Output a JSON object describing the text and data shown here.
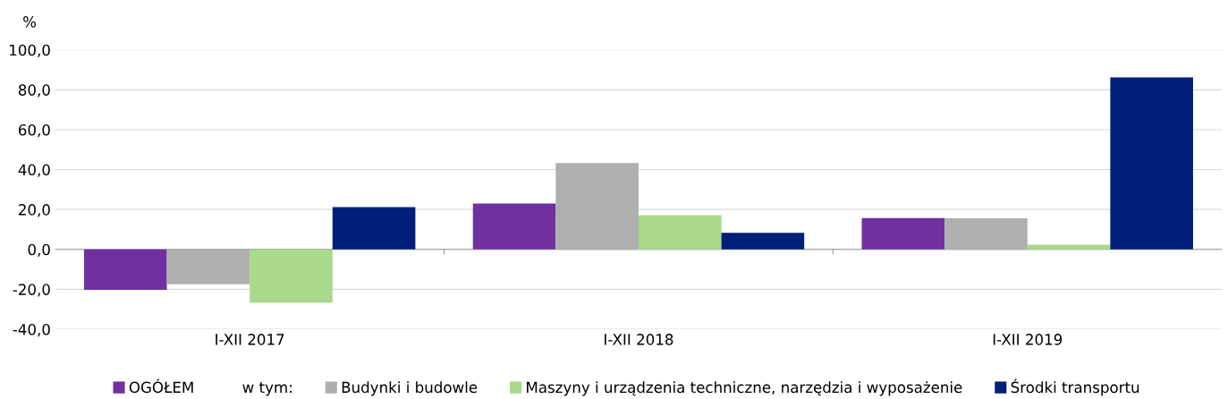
{
  "chart_data": {
    "type": "bar",
    "ylabel": "%",
    "categories": [
      "I-XII 2017",
      "I-XII 2018",
      "I-XII 2019"
    ],
    "series": [
      {
        "name": "OGÓŁEM",
        "color": "#7030a0",
        "values": [
          -20.3,
          23.0,
          15.7
        ]
      },
      {
        "name": "Budynki i budowle",
        "color": "#afafaf",
        "values": [
          -17.5,
          43.3,
          15.6
        ]
      },
      {
        "name": "Maszyny i urządzenia techniczne, narzędzia i wyposażenie",
        "color": "#a9d98b",
        "values": [
          -26.7,
          17.1,
          2.3
        ]
      },
      {
        "name": "Środki transportu",
        "color": "#00207a",
        "values": [
          21.2,
          8.3,
          86.2
        ]
      }
    ],
    "annotations": [
      "w tym:"
    ],
    "ylim": [
      -40,
      100
    ],
    "yticks": [
      {
        "value": -40,
        "label": "-40,0"
      },
      {
        "value": -20,
        "label": "-20,0"
      },
      {
        "value": 0,
        "label": "0,0"
      },
      {
        "value": 20,
        "label": "20,0"
      },
      {
        "value": 40,
        "label": "40,0"
      },
      {
        "value": 60,
        "label": "60,0"
      },
      {
        "value": 80,
        "label": "80,0"
      },
      {
        "value": 100,
        "label": "100,0"
      }
    ],
    "grid": "y",
    "legend": "bottom"
  }
}
